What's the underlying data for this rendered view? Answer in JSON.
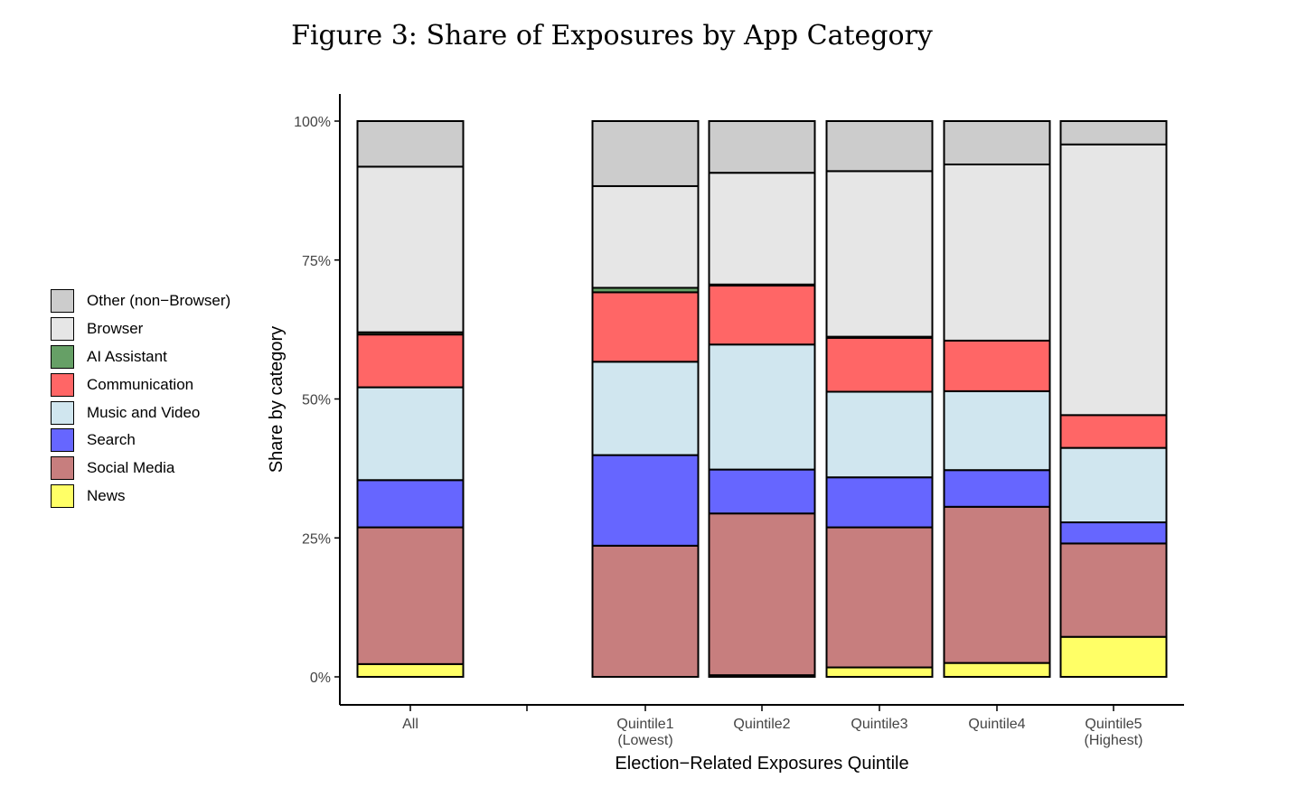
{
  "chart_data": {
    "type": "bar",
    "stacked": true,
    "title": "Figure 3: Share of Exposures by App Category",
    "xlabel": "Election−Related Exposures Quintile",
    "ylabel": "Share by category",
    "ylim": [
      0,
      1
    ],
    "yticks": [
      "0%",
      "25%",
      "50%",
      "75%",
      "100%"
    ],
    "categories": [
      "All",
      "Quintile1\n(Lowest)",
      "Quintile2",
      "Quintile3",
      "Quintile4",
      "Quintile5\n(Highest)"
    ],
    "stack_order": [
      "News",
      "Social Media",
      "Search",
      "Music and Video",
      "Communication",
      "AI Assistant",
      "Browser",
      "Other (non−Browser)"
    ],
    "series": [
      {
        "name": "News",
        "color": "#ffff66",
        "values": [
          0.023,
          0.0,
          0.003,
          0.017,
          0.025,
          0.072
        ]
      },
      {
        "name": "Social Media",
        "color": "#c77e7e",
        "values": [
          0.246,
          0.236,
          0.291,
          0.252,
          0.281,
          0.168
        ]
      },
      {
        "name": "Search",
        "color": "#6666ff",
        "values": [
          0.085,
          0.163,
          0.079,
          0.09,
          0.066,
          0.038
        ]
      },
      {
        "name": "Music and Video",
        "color": "#d0e6ef",
        "values": [
          0.167,
          0.168,
          0.225,
          0.154,
          0.142,
          0.134
        ]
      },
      {
        "name": "Communication",
        "color": "#ff6666",
        "values": [
          0.095,
          0.125,
          0.106,
          0.097,
          0.091,
          0.059
        ]
      },
      {
        "name": "AI Assistant",
        "color": "#66a066",
        "values": [
          0.004,
          0.008,
          0.002,
          0.002,
          0.0,
          0.0
        ]
      },
      {
        "name": "Browser",
        "color": "#e6e6e6",
        "values": [
          0.298,
          0.183,
          0.201,
          0.298,
          0.317,
          0.487
        ]
      },
      {
        "name": "Other (non−Browser)",
        "color": "#cccccc",
        "values": [
          0.082,
          0.117,
          0.093,
          0.09,
          0.078,
          0.042
        ]
      }
    ],
    "legend": {
      "position": "left",
      "items": [
        "Other (non−Browser)",
        "Browser",
        "AI Assistant",
        "Communication",
        "Music and Video",
        "Search",
        "Social Media",
        "News"
      ]
    }
  }
}
